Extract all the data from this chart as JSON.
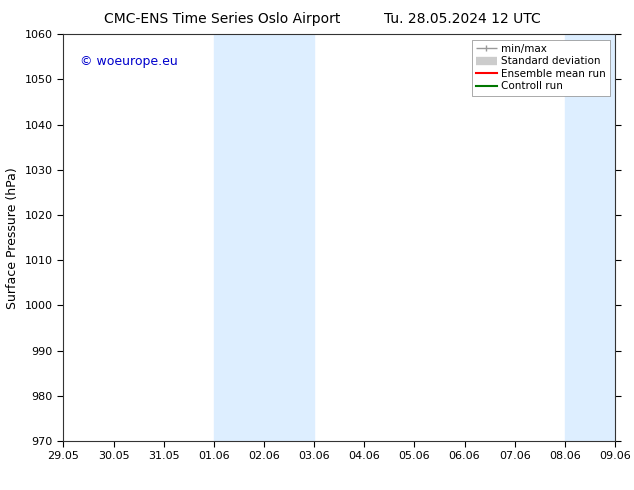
{
  "title_left": "CMC-ENS Time Series Oslo Airport",
  "title_right": "Tu. 28.05.2024 12 UTC",
  "ylabel": "Surface Pressure (hPa)",
  "ylim": [
    970,
    1060
  ],
  "yticks": [
    970,
    980,
    990,
    1000,
    1010,
    1020,
    1030,
    1040,
    1050,
    1060
  ],
  "x_tick_labels": [
    "29.05",
    "30.05",
    "31.05",
    "01.06",
    "02.06",
    "03.06",
    "04.06",
    "05.06",
    "06.06",
    "07.06",
    "08.06",
    "09.06"
  ],
  "x_tick_positions": [
    0,
    1,
    2,
    3,
    4,
    5,
    6,
    7,
    8,
    9,
    10,
    11
  ],
  "xlim": [
    0,
    11
  ],
  "shade_regions": [
    {
      "x_start": 3,
      "x_end": 5
    },
    {
      "x_start": 10,
      "x_end": 11
    }
  ],
  "shade_color": "#ddeeff",
  "background_color": "#ffffff",
  "fig_background_color": "#ffffff",
  "watermark_text": "© woeurope.eu",
  "watermark_color": "#0000cc",
  "legend_items": [
    {
      "label": "min/max",
      "color": "#999999",
      "lw": 1.0,
      "style": "line_with_caps"
    },
    {
      "label": "Standard deviation",
      "color": "#cccccc",
      "lw": 6,
      "style": "thick_line"
    },
    {
      "label": "Ensemble mean run",
      "color": "#ff0000",
      "lw": 1.5,
      "style": "line"
    },
    {
      "label": "Controll run",
      "color": "#007700",
      "lw": 1.5,
      "style": "line"
    }
  ],
  "title_fontsize": 10,
  "axis_label_fontsize": 9,
  "tick_fontsize": 8,
  "legend_fontsize": 7.5,
  "watermark_fontsize": 9
}
